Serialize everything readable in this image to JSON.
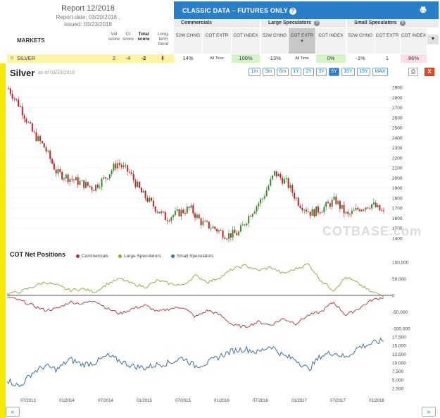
{
  "report": {
    "title": "Report 12/2018",
    "report_date": "Report date: 03/20/2018 ,",
    "issued": "issued: 03/23/2018"
  },
  "markets": {
    "label": "MARKETS",
    "score_headers": {
      "vol": "Vol score",
      "ci": "CI score",
      "total": "Total score",
      "trend": "Long-term trend"
    }
  },
  "classic": {
    "title": "CLASSIC DATA – FUTURES ONLY",
    "groups": [
      "Commercials",
      "Large Speculators",
      "Small Speculators"
    ],
    "subheaders": [
      "52W CHNG",
      "COT EXTR",
      "COT INDEX"
    ]
  },
  "row": {
    "name": "SILVER",
    "vol": "2",
    "ci": "-4",
    "total": "-2",
    "comm_chng": "14%",
    "comm_extr": "All Time",
    "comm_index": "100%",
    "ls_chng": "-13%",
    "ls_extr": "All Time",
    "ls_index": "0%",
    "ss_chng": "-1%",
    "ss_extr": "1",
    "ss_index": "86%"
  },
  "chart": {
    "title": "Silver",
    "asof": "as of 03/23/2018",
    "ranges": [
      "1m",
      "3m",
      "6m",
      "1Y",
      "2Y",
      "3Y",
      "5Y",
      "10Y",
      "15Y",
      "MAX"
    ],
    "active_range": "5Y",
    "close_label": "X",
    "watermark": "COTBASE.com"
  },
  "cot": {
    "title": "COT Net Positions",
    "legend": [
      "Commercials",
      "Large Speculators",
      "Small Speculators"
    ]
  },
  "nav": {
    "prev": "«",
    "next": "»"
  },
  "colors": {
    "commercials": "#b03030",
    "large_specs": "#8aa83a",
    "small_specs": "#3f6fa8",
    "accent": "#2a7ec7",
    "up": "#3a8a2a",
    "down": "#c0242a"
  },
  "chart_data": [
    {
      "type": "candlestick",
      "title": "Silver",
      "ylim": [
        1400,
        2900
      ],
      "yticks": [
        1400,
        1500,
        1600,
        1700,
        1800,
        1900,
        2000,
        2100,
        2200,
        2300,
        2400,
        2500,
        2600,
        2700,
        2800,
        2900
      ],
      "x": [
        "07/2013",
        "01/2014",
        "07/2014",
        "01/2015",
        "07/2015",
        "01/2016",
        "07/2016",
        "01/2017",
        "07/2017",
        "01/2018"
      ],
      "close_series": [
        2890,
        2700,
        2450,
        2300,
        2050,
        2000,
        1950,
        1900,
        2000,
        2150,
        2050,
        1850,
        1720,
        1600,
        1650,
        1700,
        1550,
        1500,
        1430,
        1450,
        1650,
        1800,
        2050,
        1950,
        1750,
        1650,
        1700,
        1780,
        1620,
        1700,
        1740,
        1650
      ]
    },
    {
      "type": "line",
      "title": "COT Net Positions",
      "ylim": [
        -100000,
        100000
      ],
      "yticks": [
        -100000,
        -50000,
        0,
        50000,
        100000
      ],
      "series": [
        {
          "name": "Commercials",
          "values": [
            -5000,
            -15000,
            -30000,
            -45000,
            -40000,
            -20000,
            -25000,
            -15000,
            -40000,
            -55000,
            -40000,
            -30000,
            -50000,
            -40000,
            -35000,
            -65000,
            -45000,
            -60000,
            -90000,
            -95000,
            -80000,
            -90000,
            -70000,
            -85000,
            -60000,
            -50000,
            -20000,
            -60000,
            -40000,
            -15000,
            -5000
          ]
        },
        {
          "name": "Large Speculators",
          "values": [
            5000,
            10000,
            25000,
            40000,
            30000,
            15000,
            20000,
            10000,
            35000,
            50000,
            35000,
            25000,
            45000,
            35000,
            30000,
            60000,
            40000,
            55000,
            80000,
            90000,
            75000,
            85000,
            65000,
            80000,
            95000,
            45000,
            15000,
            55000,
            35000,
            10000,
            0
          ]
        }
      ]
    },
    {
      "type": "line",
      "title": "Small Speculators",
      "ylim": [
        2500,
        17500
      ],
      "yticks": [
        2500,
        5000,
        7500,
        10000,
        12500,
        15000,
        17500
      ],
      "series": [
        {
          "name": "Small Speculators",
          "values": [
            5000,
            3000,
            7000,
            9000,
            8000,
            11000,
            9500,
            10000,
            12000,
            10500,
            9000,
            8500,
            9500,
            10000,
            11500,
            9000,
            10000,
            12000,
            13500,
            14000,
            13000,
            15000,
            12000,
            11000,
            8000,
            12000,
            13000,
            11500,
            14500,
            15500,
            16500
          ]
        }
      ]
    }
  ]
}
